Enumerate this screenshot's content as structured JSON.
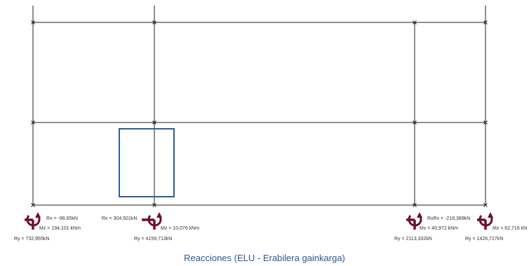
{
  "title": "Reacciones  (ELU - Erabilera gainkarga)",
  "colors": {
    "frame": "#222222",
    "highlight": "#2e5e9a",
    "support": "#6e0f2a",
    "title": "#2f5597"
  },
  "supports": [
    {
      "id": "s1",
      "rx": "Rx = -96,65kN",
      "mz": "Mz = 194,101 kNm",
      "ry": "Ry = 732,955kN"
    },
    {
      "id": "s2",
      "rx": "Rx = 304,501kN",
      "mz": "Mz = 10,076 kNm",
      "ry": "Ry = 4159,713kN"
    },
    {
      "id": "s3",
      "rx": "RxRx = -218,389kN",
      "mz": "Mz = 40,972 kNm",
      "ry": "Ry = 2113,332kN"
    },
    {
      "id": "s4",
      "rx": "",
      "mz": "Mz = 62,716 kN",
      "ry": "Ry = 1426,727kN"
    }
  ]
}
